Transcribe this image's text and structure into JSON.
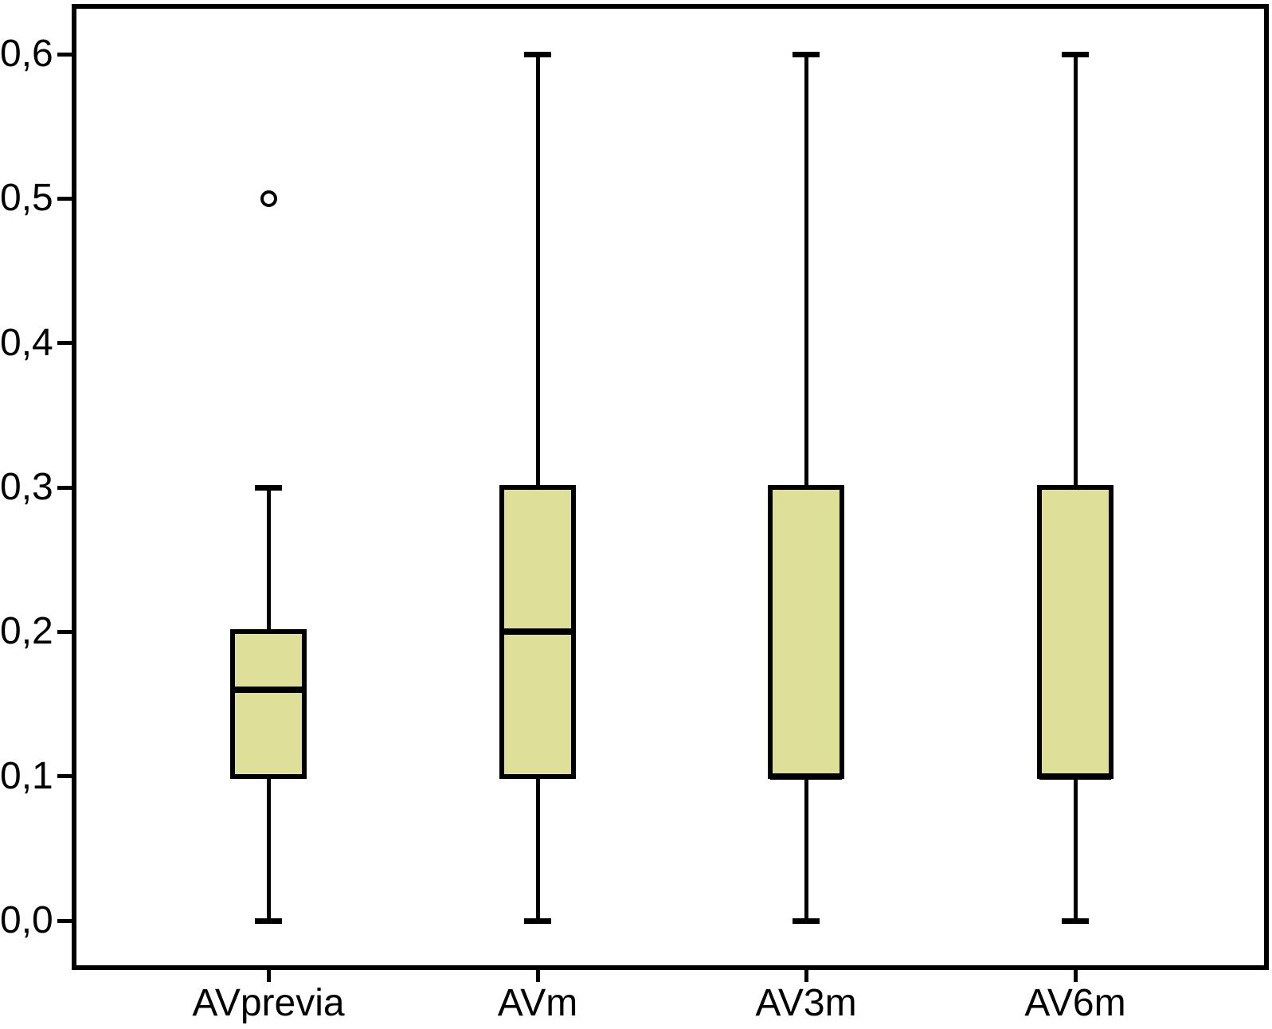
{
  "chart_data": {
    "type": "box",
    "title": "",
    "xlabel": "",
    "ylabel": "",
    "categories": [
      "AVprevia",
      "AVm",
      "AV3m",
      "AV6m"
    ],
    "boxes": [
      {
        "label": "AVprevia",
        "whisker_low": 0.0,
        "q1": 0.1,
        "median": 0.16,
        "q3": 0.2,
        "whisker_high": 0.3,
        "outliers": [
          0.5
        ]
      },
      {
        "label": "AVm",
        "whisker_low": 0.0,
        "q1": 0.1,
        "median": 0.2,
        "q3": 0.3,
        "whisker_high": 0.6,
        "outliers": []
      },
      {
        "label": "AV3m",
        "whisker_low": 0.0,
        "q1": 0.1,
        "median": 0.1,
        "q3": 0.3,
        "whisker_high": 0.6,
        "outliers": []
      },
      {
        "label": "AV6m",
        "whisker_low": 0.0,
        "q1": 0.1,
        "median": 0.1,
        "q3": 0.3,
        "whisker_high": 0.6,
        "outliers": []
      }
    ],
    "y_axis": {
      "min": 0.0,
      "max": 0.6,
      "tick_step": 0.1,
      "tick_values": [
        0.0,
        0.1,
        0.2,
        0.3,
        0.4,
        0.5,
        0.6
      ],
      "tick_labels": [
        "0,0",
        "0,1",
        "0,2",
        "0,3",
        "0,4",
        "0,5",
        "0,6"
      ],
      "decimal_separator": ","
    },
    "grid": "off",
    "legend": "none",
    "colors": {
      "box_fill": "#dee09a",
      "line": "#000000",
      "background": "#ffffff",
      "outlier_fill": "#ffffff"
    }
  }
}
